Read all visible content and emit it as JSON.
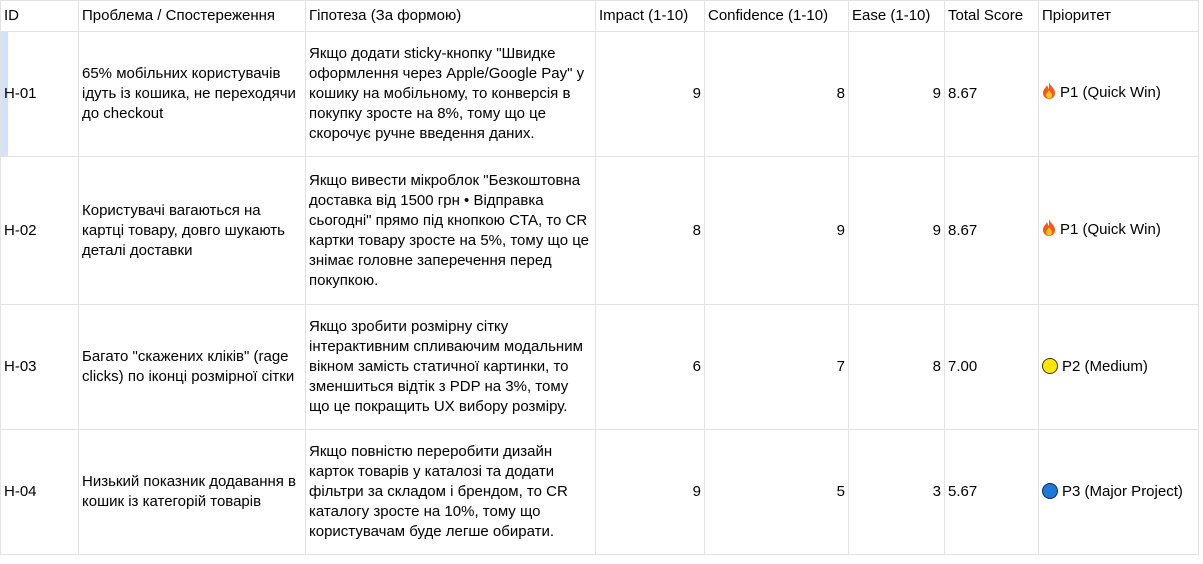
{
  "headers": [
    "ID",
    "Проблема / Спостереження",
    "Гіпотеза (За формою)",
    "Impact (1-10)",
    "Confidence (1-10)",
    "Ease (1-10)",
    "Total Score",
    "Пріоритет"
  ],
  "rows": [
    {
      "id": "H-01",
      "problem": "65% мобільних користувачів ідуть із кошика, не переходячи до checkout",
      "hypothesis": "Якщо додати sticky-кнопку \"Швидке оформлення через Apple/Google Pay\" у кошику на мобільному, то конверсія в покупку зросте на 8%, тому що це скорочує ручне введення даних.",
      "impact": "9",
      "confidence": "8",
      "ease": "9",
      "score": "8.67",
      "priority": "P1 (Quick Win)",
      "priority_icon": "fire-icon"
    },
    {
      "id": "H-02",
      "problem": "Користувачі вагаються на картці товару, довго шукають деталі доставки",
      "hypothesis": "Якщо вивести мікроблок \"Безкоштовна доставка від 1500 грн • Відправка сьогодні\" прямо під кнопкою CTA, то CR картки товару зросте на 5%, тому що це знімає головне заперечення перед покупкою.",
      "impact": "8",
      "confidence": "9",
      "ease": "9",
      "score": "8.67",
      "priority": "P1 (Quick Win)",
      "priority_icon": "fire-icon"
    },
    {
      "id": "H-03",
      "problem": "Багато \"скажених кліків\" (rage clicks) по іконці розмірної сітки",
      "hypothesis": "Якщо зробити розмірну сітку інтерактивним спливаючим модальним вікном замість статичної картинки, то зменшиться відтік з PDP на 3%, тому що це покращить UX вибору розміру.",
      "impact": "6",
      "confidence": "7",
      "ease": "8",
      "score": "7.00",
      "priority": "P2 (Medium)",
      "priority_icon": "yellow-circle-icon"
    },
    {
      "id": "H-04",
      "problem": "Низький показник додавання в кошик із категорій товарів",
      "hypothesis": "Якщо повністю переробити дизайн карток товарів у каталозі та додати фільтри за складом і брендом, то CR каталогу зросте на 10%, тому що користувачам буде легше обирати.",
      "impact": "9",
      "confidence": "5",
      "ease": "3",
      "score": "5.67",
      "priority": "P3 (Major Project)",
      "priority_icon": "blue-circle-icon"
    }
  ],
  "colors": {
    "grid": "#e2e2e2",
    "selected_row_indicator": "#d3e2fc",
    "yellow": "#ffe600",
    "blue": "#1e78d8"
  }
}
